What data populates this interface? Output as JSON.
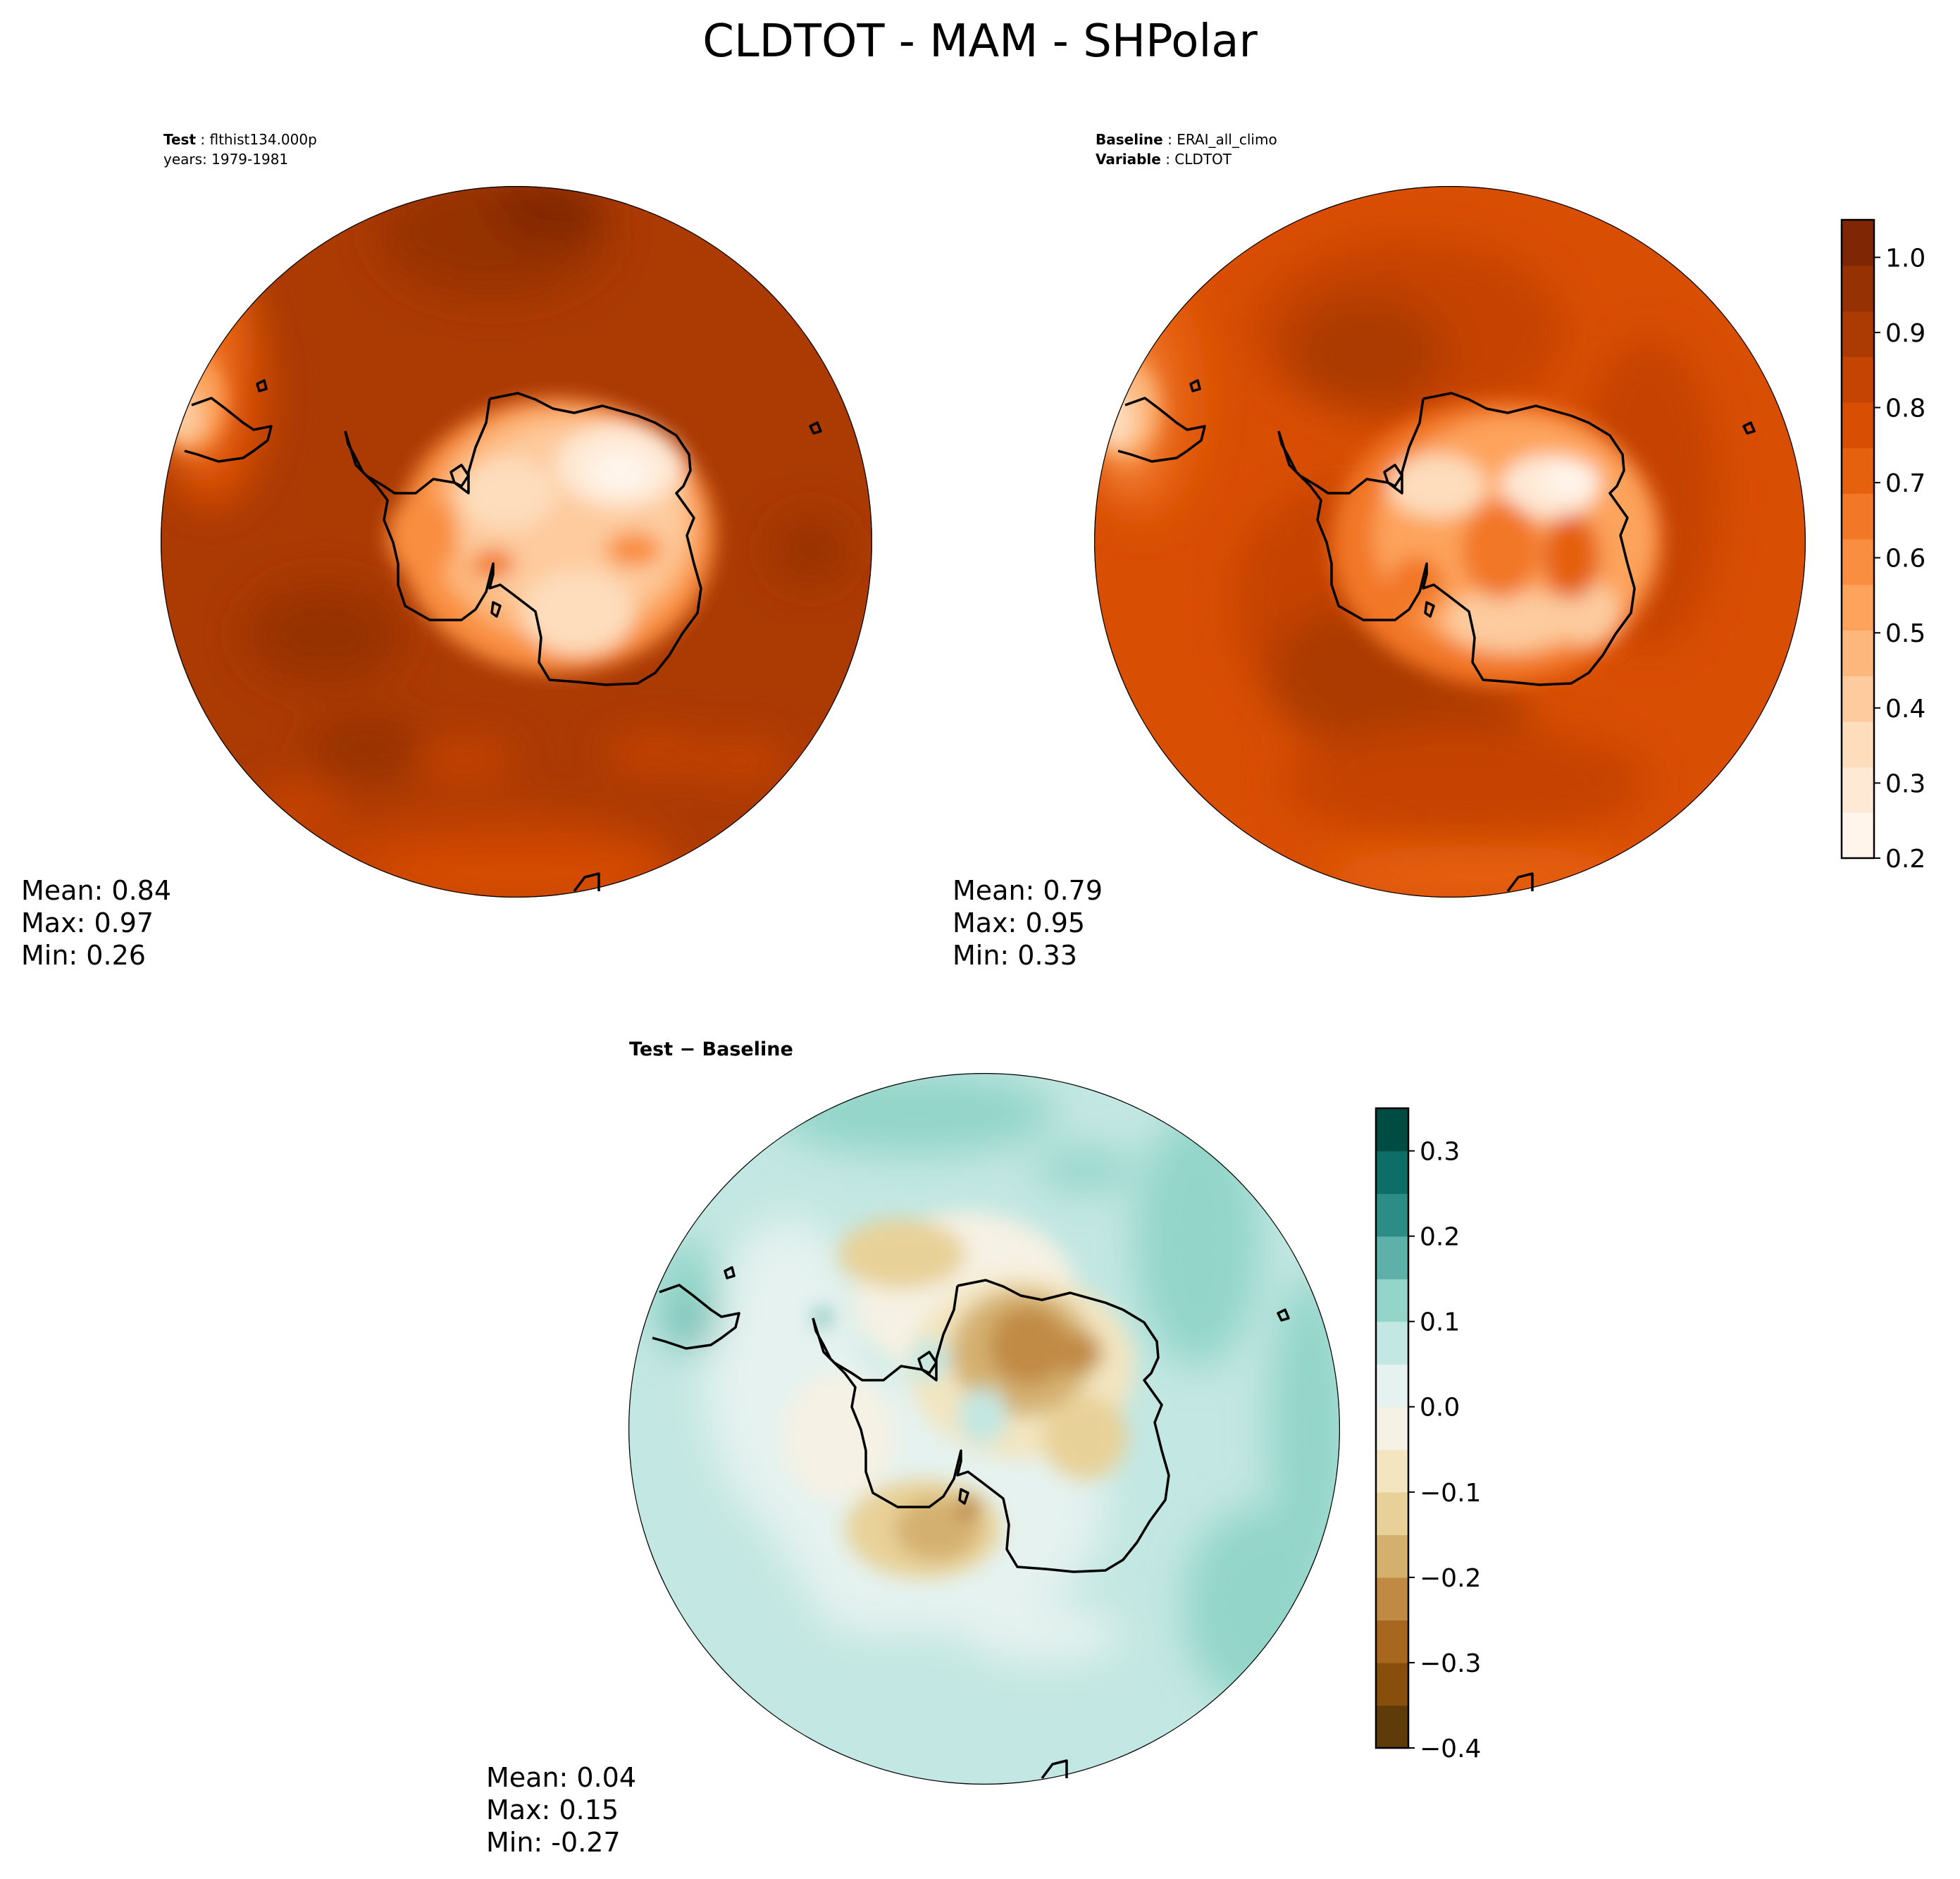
{
  "title": "CLDTOT - MAM - SHPolar",
  "panels": [
    {
      "id": "test",
      "header_lines": [
        {
          "bold": "Test",
          "text": "flthist134.000p"
        },
        {
          "bold": "",
          "text": "years: 1979-1981"
        }
      ],
      "stats": {
        "mean": "Mean:  0.84",
        "max": "Max:  0.97",
        "min": "Min:  0.26"
      }
    },
    {
      "id": "baseline",
      "header_lines": [
        {
          "bold": "Baseline",
          "text": "ERAI_all_climo"
        },
        {
          "bold": "Variable",
          "text": "CLDTOT"
        }
      ],
      "stats": {
        "mean": "Mean:  0.79",
        "max": "Max:  0.95",
        "min": "Min:  0.33"
      }
    },
    {
      "id": "diff",
      "header_lines": [
        {
          "bold": "Test − Baseline",
          "text": ""
        }
      ],
      "stats": {
        "mean": "Mean:  0.04",
        "max": "Max:  0.15",
        "min": "Min: -0.27"
      }
    }
  ],
  "colorbars": [
    {
      "id": "cloud-fraction",
      "colormap": "Oranges",
      "ticks": [
        "0.2",
        "0.3",
        "0.4",
        "0.5",
        "0.6",
        "0.7",
        "0.8",
        "0.9",
        "1.0"
      ],
      "range": [
        0.2,
        1.05
      ],
      "colors": [
        "#fff5eb",
        "#fee9d5",
        "#fdddbc",
        "#fdcb9e",
        "#fdb77c",
        "#fda35c",
        "#f98e40",
        "#f27726",
        "#e5610e",
        "#d84e03",
        "#c54303",
        "#ab3a03",
        "#963103",
        "#7f2704"
      ]
    },
    {
      "id": "difference",
      "colormap": "BrBG",
      "ticks": [
        "−0.4",
        "−0.3",
        "−0.2",
        "−0.1",
        "0.0",
        "0.1",
        "0.2",
        "0.3"
      ],
      "range": [
        -0.4,
        0.35
      ],
      "colors": [
        "#603b0a",
        "#874f0b",
        "#a7671e",
        "#c18a44",
        "#d4b06f",
        "#e8d198",
        "#f3e5c0",
        "#f5f1e4",
        "#e5f2ef",
        "#c3e7e2",
        "#93d5c9",
        "#5db1a8",
        "#2c8d86",
        "#0c6e67",
        "#014c42"
      ]
    }
  ]
}
